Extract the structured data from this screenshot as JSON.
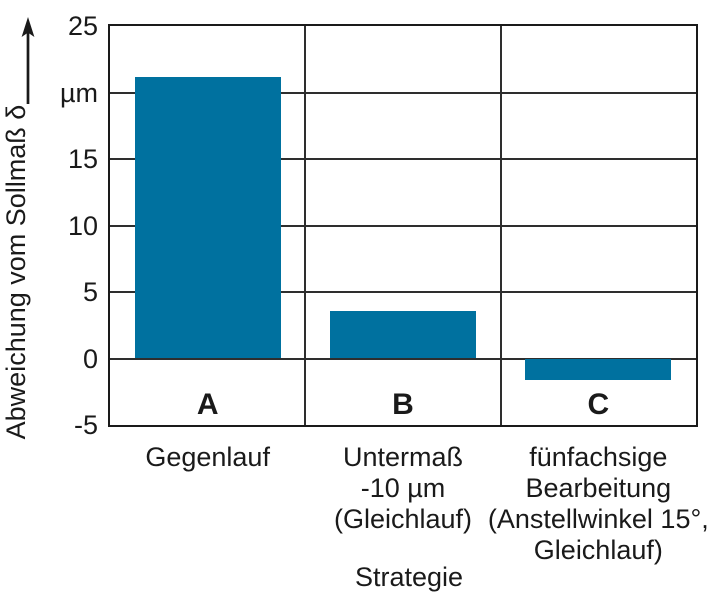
{
  "chart_data": {
    "type": "bar",
    "title": "",
    "xlabel": "Strategie",
    "ylabel": "Abweichung vom Sollmaß δ",
    "unit_label": "µm",
    "categories": [
      "Gegenlauf",
      "Untermaß\n-10 µm\n(Gleichlauf)",
      "fünfachsige\nBearbeitung\n(Anstellwinkel 15°,\nGleichlauf)"
    ],
    "bar_keys": [
      "A",
      "B",
      "C"
    ],
    "values": [
      21.2,
      3.6,
      -1.6
    ],
    "ylim": [
      -5,
      25
    ],
    "ytick_step": 5,
    "yticks": [
      {
        "value": 25,
        "label": "25"
      },
      {
        "value": 20,
        "label": "µm"
      },
      {
        "value": 15,
        "label": "15"
      },
      {
        "value": 10,
        "label": "10"
      },
      {
        "value": 5,
        "label": "5"
      },
      {
        "value": 0,
        "label": "0"
      },
      {
        "value": -5,
        "label": "-5"
      }
    ],
    "grid": true,
    "legend": "none",
    "colors": {
      "bar": "#00719f",
      "frame": "#1a1a1a",
      "grid": "#2e2e2e",
      "text": "#1a1a1a",
      "background": "#ffffff"
    }
  }
}
